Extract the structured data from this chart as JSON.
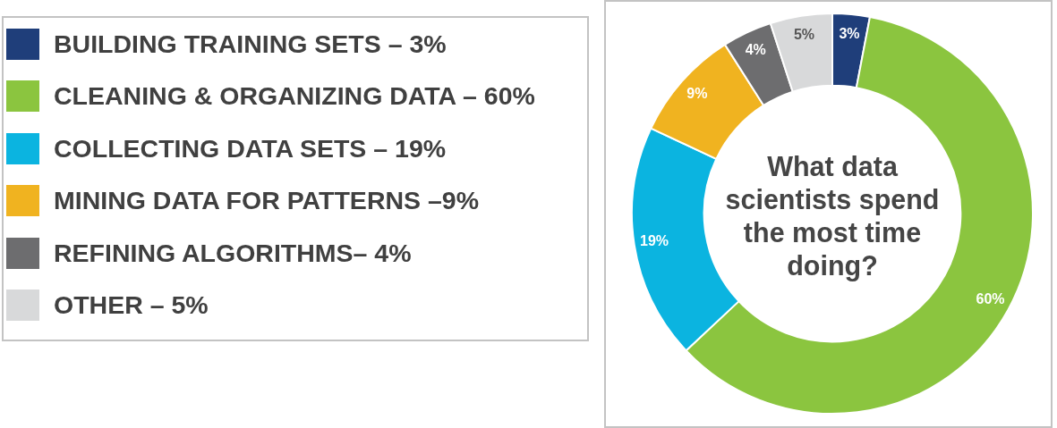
{
  "chart_data": {
    "type": "donut",
    "title": "What data scientists spend the most time doing?",
    "categories": [
      "BUILDING TRAINING SETS – 3%",
      "CLEANING & ORGANIZING DATA – 60%",
      "COLLECTING DATA SETS – 19%",
      "MINING DATA FOR PATTERNS –9%",
      "REFINING ALGORITHMS– 4%",
      "OTHER – 5%"
    ],
    "values": [
      3,
      60,
      19,
      9,
      4,
      5
    ],
    "colors": [
      "#1f3e7a",
      "#8bc53f",
      "#0bb4e0",
      "#f0b320",
      "#6d6d6f",
      "#d8d9da"
    ],
    "value_labels": [
      "3%",
      "60%",
      "19%",
      "9%",
      "4%",
      "5%"
    ],
    "legend": "left"
  }
}
